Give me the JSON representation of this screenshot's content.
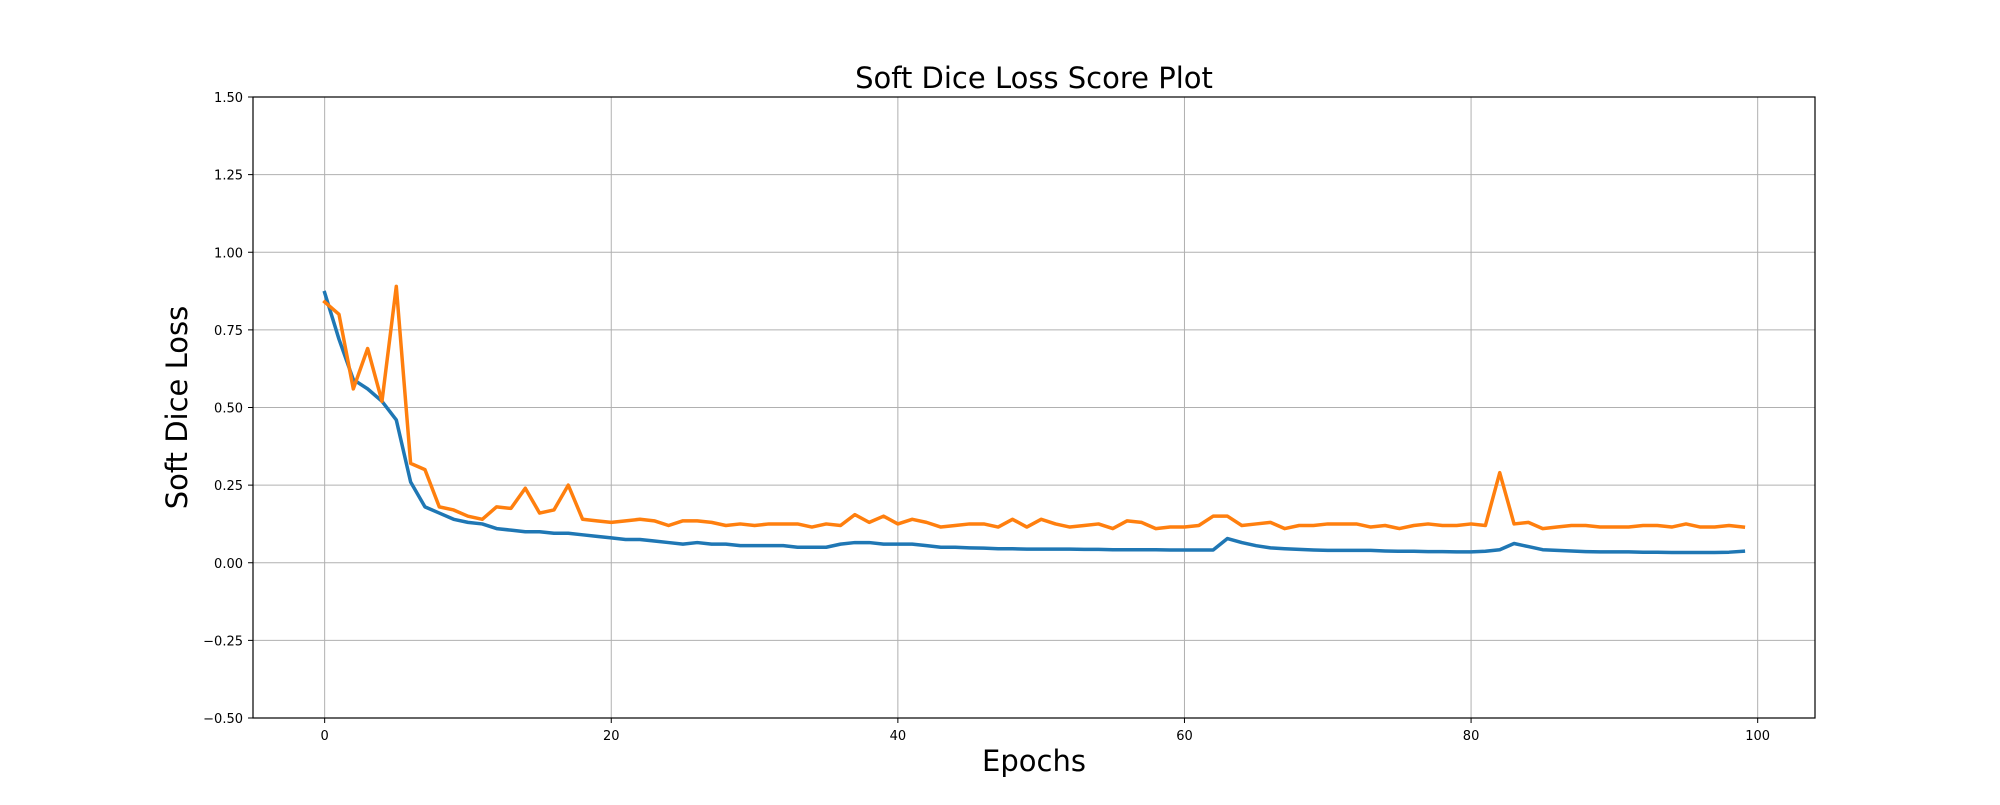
{
  "chart_data": {
    "type": "line",
    "title": "Soft Dice Loss Score Plot",
    "xlabel": "Epochs",
    "ylabel": "Soft Dice Loss",
    "xlim": [
      -5,
      104
    ],
    "ylim": [
      -0.5,
      1.5
    ],
    "xticks": [
      0,
      20,
      40,
      60,
      80,
      100
    ],
    "yticks": [
      -0.5,
      -0.25,
      0.0,
      0.25,
      0.5,
      0.75,
      1.0,
      1.25,
      1.5
    ],
    "xtick_labels": [
      "0",
      "20",
      "40",
      "60",
      "80",
      "100"
    ],
    "ytick_labels": [
      "−0.50",
      "−0.25",
      "0.00",
      "0.25",
      "0.50",
      "0.75",
      "1.00",
      "1.25",
      "1.50"
    ],
    "grid": true,
    "legend": false,
    "x": [
      0,
      1,
      2,
      3,
      4,
      5,
      6,
      7,
      8,
      9,
      10,
      11,
      12,
      13,
      14,
      15,
      16,
      17,
      18,
      19,
      20,
      21,
      22,
      23,
      24,
      25,
      26,
      27,
      28,
      29,
      30,
      31,
      32,
      33,
      34,
      35,
      36,
      37,
      38,
      39,
      40,
      41,
      42,
      43,
      44,
      45,
      46,
      47,
      48,
      49,
      50,
      51,
      52,
      53,
      54,
      55,
      56,
      57,
      58,
      59,
      60,
      61,
      62,
      63,
      64,
      65,
      66,
      67,
      68,
      69,
      70,
      71,
      72,
      73,
      74,
      75,
      76,
      77,
      78,
      79,
      80,
      81,
      82,
      83,
      84,
      85,
      86,
      87,
      88,
      89,
      90,
      91,
      92,
      93,
      94,
      95,
      96,
      97,
      98,
      99
    ],
    "series": [
      {
        "color": "#1f77b4",
        "values": [
          0.87,
          0.72,
          0.59,
          0.56,
          0.52,
          0.46,
          0.26,
          0.18,
          0.16,
          0.14,
          0.13,
          0.125,
          0.11,
          0.105,
          0.1,
          0.1,
          0.095,
          0.095,
          0.09,
          0.085,
          0.08,
          0.075,
          0.075,
          0.07,
          0.065,
          0.06,
          0.065,
          0.06,
          0.06,
          0.055,
          0.055,
          0.055,
          0.055,
          0.05,
          0.05,
          0.05,
          0.06,
          0.065,
          0.065,
          0.06,
          0.06,
          0.06,
          0.055,
          0.05,
          0.05,
          0.048,
          0.047,
          0.045,
          0.045,
          0.044,
          0.044,
          0.044,
          0.044,
          0.043,
          0.043,
          0.042,
          0.042,
          0.042,
          0.042,
          0.041,
          0.041,
          0.041,
          0.041,
          0.078,
          0.065,
          0.055,
          0.048,
          0.045,
          0.043,
          0.041,
          0.04,
          0.04,
          0.04,
          0.04,
          0.038,
          0.037,
          0.037,
          0.036,
          0.036,
          0.035,
          0.035,
          0.037,
          0.042,
          0.062,
          0.052,
          0.042,
          0.04,
          0.038,
          0.036,
          0.035,
          0.035,
          0.035,
          0.034,
          0.034,
          0.033,
          0.033,
          0.033,
          0.033,
          0.034,
          0.037
        ]
      },
      {
        "color": "#ff7f0e",
        "values": [
          0.84,
          0.8,
          0.56,
          0.69,
          0.52,
          0.89,
          0.32,
          0.3,
          0.18,
          0.17,
          0.15,
          0.14,
          0.18,
          0.175,
          0.24,
          0.16,
          0.17,
          0.25,
          0.14,
          0.135,
          0.13,
          0.135,
          0.14,
          0.135,
          0.12,
          0.135,
          0.135,
          0.13,
          0.12,
          0.125,
          0.12,
          0.125,
          0.125,
          0.125,
          0.115,
          0.125,
          0.12,
          0.155,
          0.13,
          0.15,
          0.125,
          0.14,
          0.13,
          0.115,
          0.12,
          0.125,
          0.125,
          0.115,
          0.14,
          0.115,
          0.14,
          0.125,
          0.115,
          0.12,
          0.125,
          0.11,
          0.135,
          0.13,
          0.11,
          0.115,
          0.115,
          0.12,
          0.15,
          0.15,
          0.12,
          0.125,
          0.13,
          0.11,
          0.12,
          0.12,
          0.125,
          0.125,
          0.125,
          0.115,
          0.12,
          0.11,
          0.12,
          0.125,
          0.12,
          0.12,
          0.125,
          0.12,
          0.29,
          0.125,
          0.13,
          0.11,
          0.115,
          0.12,
          0.12,
          0.115,
          0.115,
          0.115,
          0.12,
          0.12,
          0.115,
          0.125,
          0.115,
          0.115,
          0.12,
          0.115
        ]
      }
    ]
  }
}
